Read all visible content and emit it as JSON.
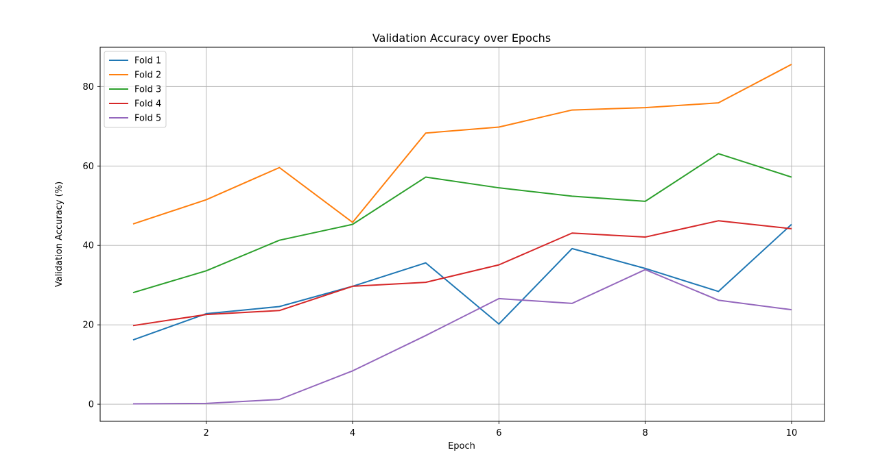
{
  "chart_data": {
    "type": "line",
    "title": "Validation Accuracy over Epochs",
    "xlabel": "Epoch",
    "ylabel": "Validation Accuracy (%)",
    "x": [
      1,
      2,
      3,
      4,
      5,
      6,
      7,
      8,
      9,
      10
    ],
    "xlim": [
      0.55,
      10.45
    ],
    "ylim": [
      -4.3,
      89.9
    ],
    "xticks": [
      2,
      4,
      6,
      8,
      10
    ],
    "yticks": [
      0,
      20,
      40,
      60,
      80
    ],
    "grid": true,
    "legend_position": "top-left",
    "series": [
      {
        "name": "Fold 1",
        "color": "#1f77b4",
        "values": [
          16.2,
          22.8,
          24.6,
          29.7,
          35.6,
          20.2,
          39.2,
          34.2,
          28.4,
          45.3
        ]
      },
      {
        "name": "Fold 2",
        "color": "#ff7f0e",
        "values": [
          45.4,
          51.5,
          59.6,
          45.8,
          68.3,
          69.8,
          74.1,
          74.7,
          75.9,
          85.6
        ]
      },
      {
        "name": "Fold 3",
        "color": "#2ca02c",
        "values": [
          28.1,
          33.6,
          41.3,
          45.3,
          57.2,
          54.5,
          52.4,
          51.1,
          63.1,
          57.2
        ]
      },
      {
        "name": "Fold 4",
        "color": "#d62728",
        "values": [
          19.8,
          22.6,
          23.6,
          29.7,
          30.7,
          35.1,
          43.1,
          42.1,
          46.2,
          44.2
        ]
      },
      {
        "name": "Fold 5",
        "color": "#9467bd",
        "values": [
          0.1,
          0.2,
          1.2,
          8.4,
          17.3,
          26.6,
          25.4,
          33.9,
          26.2,
          23.8
        ]
      }
    ]
  }
}
